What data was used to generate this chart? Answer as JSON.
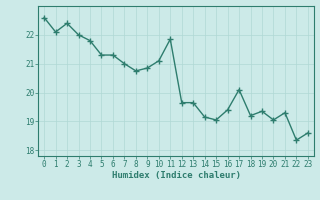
{
  "x": [
    0,
    1,
    2,
    3,
    4,
    5,
    6,
    7,
    8,
    9,
    10,
    11,
    12,
    13,
    14,
    15,
    16,
    17,
    18,
    19,
    20,
    21,
    22,
    23
  ],
  "y": [
    22.6,
    22.1,
    22.4,
    22.0,
    21.8,
    21.3,
    21.3,
    21.0,
    20.75,
    20.85,
    21.1,
    21.85,
    19.65,
    19.65,
    19.15,
    19.05,
    19.4,
    20.1,
    19.2,
    19.35,
    19.05,
    19.3,
    18.35,
    18.6
  ],
  "xlabel": "Humidex (Indice chaleur)",
  "ylim": [
    17.8,
    23.0
  ],
  "xlim": [
    -0.5,
    23.5
  ],
  "yticks": [
    18,
    19,
    20,
    21,
    22
  ],
  "xticks": [
    0,
    1,
    2,
    3,
    4,
    5,
    6,
    7,
    8,
    9,
    10,
    11,
    12,
    13,
    14,
    15,
    16,
    17,
    18,
    19,
    20,
    21,
    22,
    23
  ],
  "line_color": "#2e7d6e",
  "marker_color": "#2e7d6e",
  "bg_color": "#cceae8",
  "grid_color": "#b0d8d5",
  "axis_color": "#2e7d6e",
  "tick_color": "#2e7d6e",
  "label_color": "#2e7d6e",
  "marker": "+",
  "linewidth": 1.0,
  "markersize": 4,
  "tick_fontsize": 5.5,
  "xlabel_fontsize": 6.5
}
